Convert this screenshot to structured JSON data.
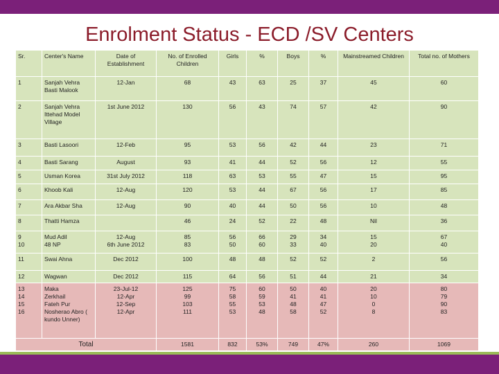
{
  "header": {
    "title": "Enrolment Status - ECD /SV Centers"
  },
  "table": {
    "columns": [
      "Sr.",
      "Center's Name",
      "Date of Establishment",
      "No. of Enrolled Children",
      "Girls",
      "%",
      "Boys",
      "%",
      "Mainstreamed Children",
      "Total no. of Mothers"
    ],
    "rows": [
      [
        "1",
        "Sanjah Vehra Basti Malook",
        "12-Jan",
        "68",
        "43",
        "63",
        "25",
        "37",
        "45",
        "60"
      ],
      [
        "2",
        "Sanjah Vehra Ittehad Model Village",
        "1st June 2012",
        "130",
        "56",
        "43",
        "74",
        "57",
        "42",
        "90"
      ],
      [
        "3",
        "Basti Lasoori",
        "12-Feb",
        "95",
        "53",
        "56",
        "42",
        "44",
        "23",
        "71"
      ],
      [
        "4",
        "Basti Sarang",
        "August",
        "93",
        "41",
        "44",
        "52",
        "56",
        "12",
        "55"
      ],
      [
        "5",
        "Usman Korea",
        "31st July 2012",
        "118",
        "63",
        "53",
        "55",
        "47",
        "15",
        "95"
      ],
      [
        "6",
        "Khoob Kali",
        "12-Aug",
        "120",
        "53",
        "44",
        "67",
        "56",
        "17",
        "85"
      ],
      [
        "7",
        "Ara Akbar Sha",
        "12-Aug",
        "90",
        "40",
        "44",
        "50",
        "56",
        "10",
        "48"
      ],
      [
        "8",
        "Thatti Hamza",
        "",
        "46",
        "24",
        "52",
        "22",
        "48",
        "Nil",
        "36"
      ],
      [
        "9\n10",
        "Mud Adil\n48 NP",
        "12-Aug\n6th June 2012",
        "85\n83",
        "56\n50",
        "66\n60",
        "29\n33",
        "34\n40",
        "15\n20",
        "67\n40"
      ],
      [
        "11",
        "Swai Ahna",
        "Dec 2012",
        "100",
        "48",
        "48",
        "52",
        "52",
        "2",
        "56"
      ],
      [
        "12",
        "Wagwan",
        "Dec 2012",
        "115",
        "64",
        "56",
        "51",
        "44",
        "21",
        "34"
      ],
      [
        "13\n14\n15\n16",
        "Maka\nZerkhail\nFateh Pur\nNosherao Abro ( kundo Unner)",
        "23-Jul-12\n12-Apr\n12-Sep\n12-Apr",
        "125\n99\n103\n111",
        "75\n58\n55\n53",
        "60\n59\n53\n48",
        "50\n41\n48\n58",
        "40\n41\n47\n52",
        "20\n10\n0\n8",
        "80\n79\n90\n83"
      ]
    ],
    "total": [
      "Total",
      "1581",
      "832",
      "53%",
      "749",
      "47%",
      "260",
      "1069"
    ]
  }
}
